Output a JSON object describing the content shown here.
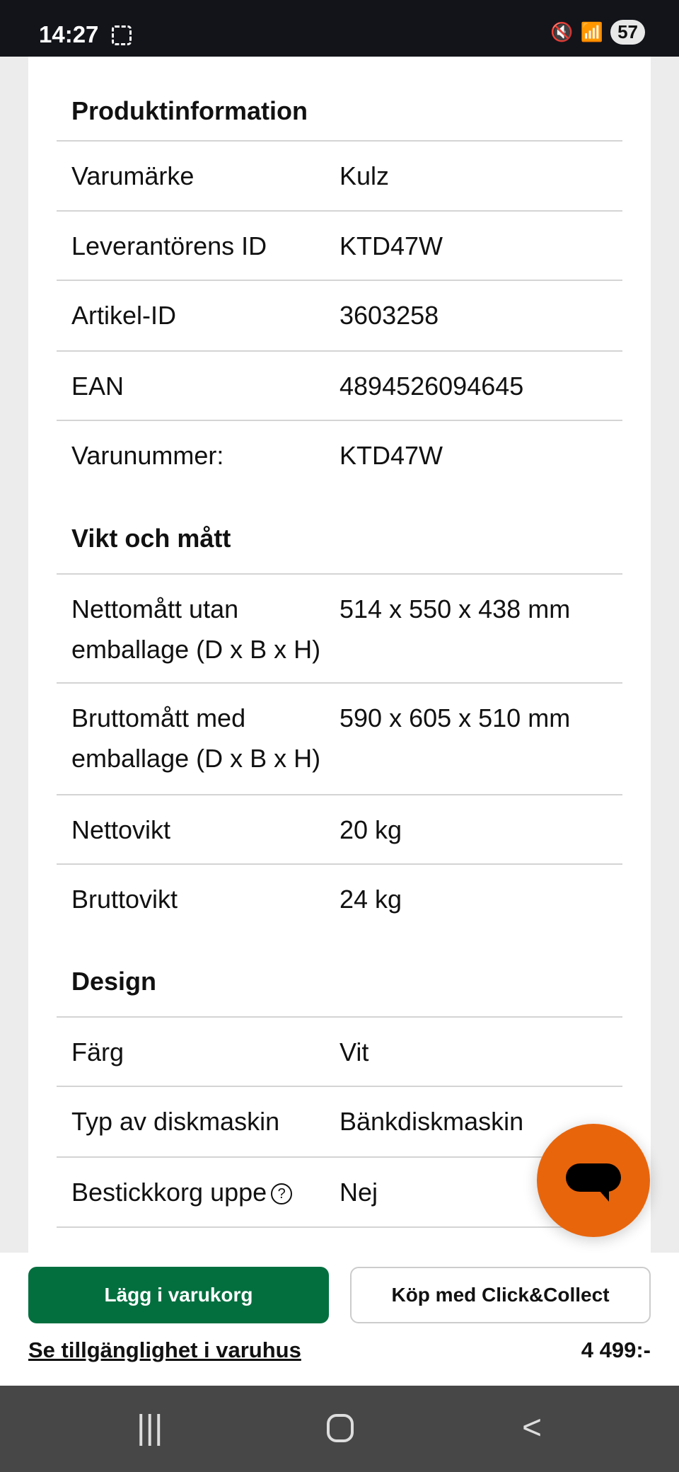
{
  "status_bar": {
    "time": "14:27",
    "battery": "57"
  },
  "sections": [
    {
      "title": "Produktinformation",
      "rows": [
        {
          "label": "Varumärke",
          "value": "Kulz"
        },
        {
          "label": "Leverantörens ID",
          "value": "KTD47W"
        },
        {
          "label": "Artikel-ID",
          "value": "3603258"
        },
        {
          "label": "EAN",
          "value": "4894526094645"
        },
        {
          "label": "Varunummer:",
          "value": "KTD47W"
        }
      ]
    },
    {
      "title": "Vikt och mått",
      "rows": [
        {
          "label": "Nettomått utan emballage (D x B x H)",
          "value": "514 x 550 x 438 mm"
        },
        {
          "label": "Bruttomått med emballage (D x B x H)",
          "value": "590 x 605 x 510 mm"
        },
        {
          "label": "Nettovikt",
          "value": "20 kg"
        },
        {
          "label": "Bruttovikt",
          "value": "24 kg"
        }
      ]
    },
    {
      "title": "Design",
      "rows": [
        {
          "label": "Färg",
          "value": "Vit"
        },
        {
          "label": "Typ av diskmaskin",
          "value": "Bänkdiskmaskin"
        },
        {
          "label": "Bestickkorg uppe",
          "value": "Nej",
          "help": "?"
        }
      ]
    }
  ],
  "actions": {
    "add_to_cart": "Lägg i varukorg",
    "click_collect": "Köp med Click&Collect",
    "availability_link": "Se tillgänglighet i varuhus",
    "price": "4 499:-"
  },
  "colors": {
    "primary": "#036f3f",
    "chat": "#e8650c"
  }
}
